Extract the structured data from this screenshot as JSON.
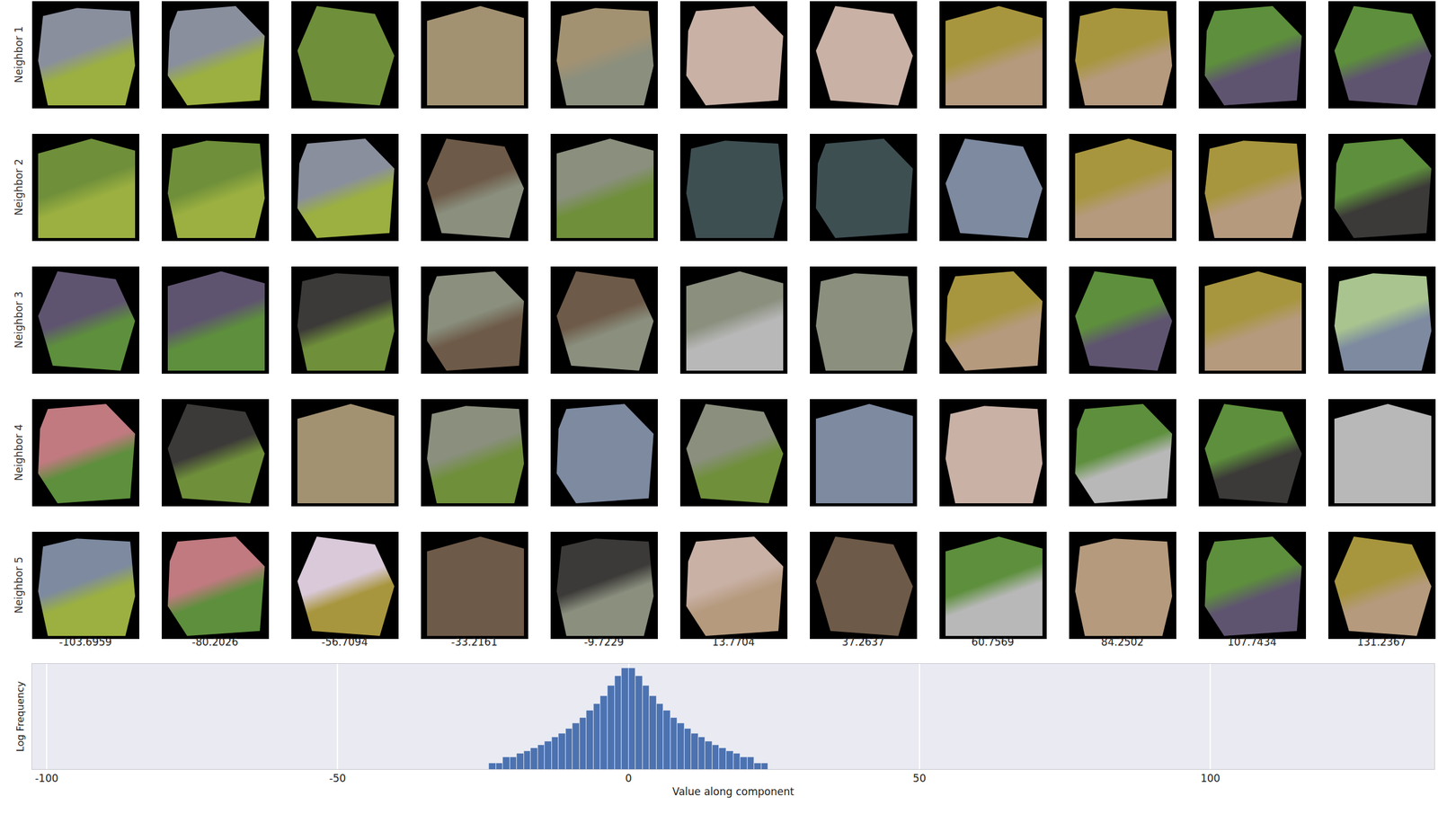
{
  "image_grid": {
    "row_labels": [
      "Neighbor 1",
      "Neighbor 2",
      "Neighbor 3",
      "Neighbor 4",
      "Neighbor 5"
    ],
    "column_values": [
      -103.6959,
      -80.2026,
      -56.7094,
      -33.2161,
      -9.7229,
      13.7704,
      37.2637,
      60.7569,
      84.2502,
      107.7434,
      131.2367
    ]
  },
  "chart_data": {
    "type": "histogram",
    "x_label": "Value along component",
    "y_label": "Log Frequency",
    "bins": [
      -24,
      -22.8,
      -21.6,
      -20.4,
      -19.2,
      -18,
      -16.8,
      -15.6,
      -14.4,
      -13.2,
      -12,
      -10.8,
      -9.6,
      -8.4,
      -7.2,
      -6,
      -4.8,
      -3.6,
      -2.4,
      -1.2,
      0,
      1.2,
      2.4,
      3.6,
      4.8,
      6,
      7.2,
      8.4,
      9.6,
      10.8,
      12,
      13.2,
      14.4,
      15.6,
      16.8,
      18,
      19.2,
      20.4,
      21.6,
      22.8,
      24
    ],
    "values": [
      1,
      1,
      2,
      2,
      3,
      4,
      6,
      8,
      13,
      20,
      32,
      56,
      100,
      200,
      447,
      1000,
      2500,
      7900,
      25000,
      63000,
      63000,
      25000,
      7900,
      2500,
      1000,
      447,
      200,
      100,
      56,
      32,
      20,
      13,
      8,
      6,
      4,
      3,
      2,
      2,
      1,
      1
    ],
    "color": "#4c72b0",
    "xlim": [
      -102.5,
      138.5
    ],
    "xticks": [
      -100,
      -50,
      0,
      50,
      100
    ],
    "ylim": [
      0.5,
      100000
    ],
    "log": "y",
    "grid": true,
    "tick_labels": "x"
  }
}
